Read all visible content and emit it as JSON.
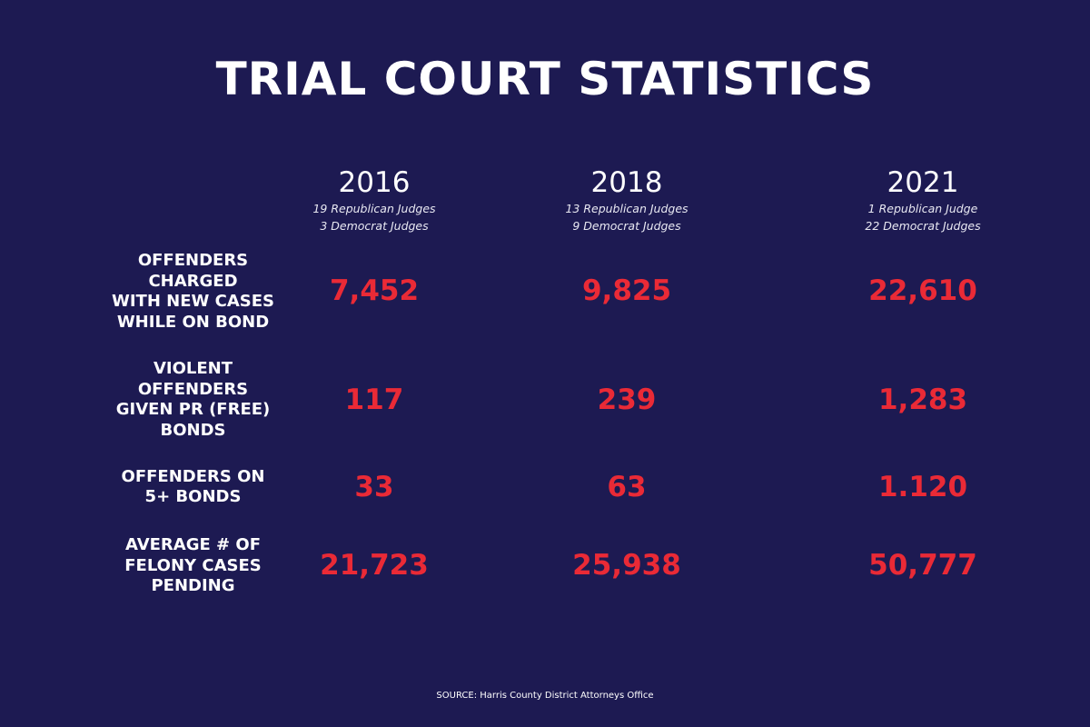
{
  "chart_data": {
    "type": "table",
    "title": "TRIAL COURT STATISTICS",
    "columns": [
      {
        "year": "2016",
        "judges_line1": "19 Republican Judges",
        "judges_line2": "3 Democrat Judges"
      },
      {
        "year": "2018",
        "judges_line1": "13 Republican Judges",
        "judges_line2": "9 Democrat Judges"
      },
      {
        "year": "2021",
        "judges_line1": "1 Republican Judge",
        "judges_line2": "22 Democrat Judges"
      }
    ],
    "rows": [
      {
        "label_lines": [
          "OFFENDERS",
          "CHARGED",
          "WITH NEW CASES",
          "WHILE ON BOND"
        ],
        "values": [
          "7,452",
          "9,825",
          "22,610"
        ]
      },
      {
        "label_lines": [
          "VIOLENT",
          "OFFENDERS",
          "GIVEN PR (FREE)",
          "BONDS"
        ],
        "values": [
          "117",
          "239",
          "1,283"
        ]
      },
      {
        "label_lines": [
          "OFFENDERS ON",
          "5+ BONDS"
        ],
        "values": [
          "33",
          "63",
          "1.120"
        ]
      },
      {
        "label_lines": [
          "AVERAGE # OF",
          "FELONY CASES",
          "PENDING"
        ],
        "values": [
          "21,723",
          "25,938",
          "50,777"
        ]
      }
    ],
    "source": "SOURCE: Harris County District Attorneys Office"
  },
  "colors": {
    "background": "#1d1a52",
    "value_red": "#ea2a36",
    "text_white": "#ffffff"
  }
}
